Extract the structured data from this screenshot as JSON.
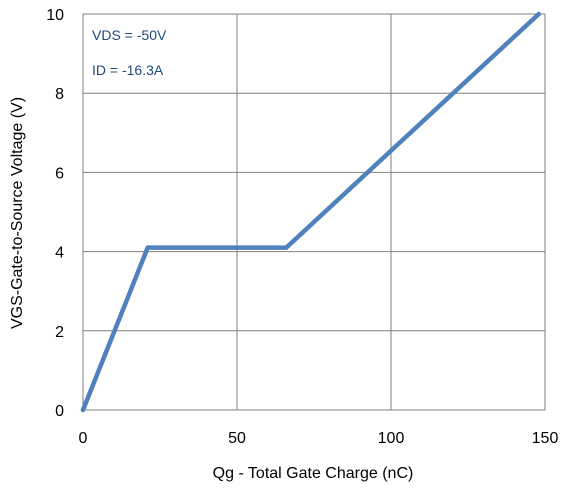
{
  "chart_data": {
    "type": "line",
    "xlabel": "Qg - Total Gate Charge (nC)",
    "ylabel": "VGS-Gate-to-Source Voltage (V)",
    "xlim": [
      0,
      150
    ],
    "ylim": [
      0,
      10
    ],
    "x_ticks": [
      "0",
      "50",
      "100",
      "150"
    ],
    "y_ticks": [
      "0",
      "2",
      "4",
      "6",
      "8",
      "10"
    ],
    "grid": true,
    "annotations": [
      "VDS = -50V",
      "ID = -16.3A"
    ],
    "series": [
      {
        "color": "#4f81bd",
        "points": [
          [
            0,
            0
          ],
          [
            21,
            4.1
          ],
          [
            66,
            4.1
          ],
          [
            148,
            10
          ]
        ]
      }
    ]
  },
  "colors": {
    "line": "#4f81bd",
    "grid": "#7f7f7f",
    "annotation_text": "#1f497d"
  }
}
